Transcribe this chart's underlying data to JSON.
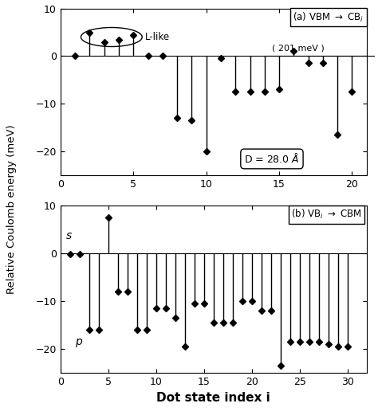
{
  "panel_a": {
    "x": [
      1,
      2,
      3,
      4,
      5,
      6,
      7,
      8,
      9,
      10,
      11,
      12,
      13,
      14,
      15,
      16,
      17,
      18,
      19,
      20
    ],
    "y": [
      0.0,
      5.0,
      3.0,
      3.5,
      4.5,
      0.0,
      0.0,
      -13.0,
      -13.5,
      -20.0,
      -0.5,
      -7.5,
      -7.5,
      -7.5,
      -7.0,
      1.0,
      -1.5,
      -1.5,
      -16.5,
      -7.5
    ],
    "ylim": [
      -25,
      10
    ],
    "yticks": [
      -20,
      -10,
      0,
      10
    ],
    "xlim": [
      0,
      21
    ],
    "xticks": [
      0,
      5,
      10,
      15,
      20
    ]
  },
  "panel_b": {
    "x": [
      1,
      2,
      3,
      4,
      5,
      6,
      7,
      8,
      9,
      10,
      11,
      12,
      13,
      14,
      15,
      16,
      17,
      18,
      19,
      20,
      21,
      22,
      23,
      24,
      25,
      26,
      27,
      28,
      29,
      30
    ],
    "y": [
      -0.2,
      -0.2,
      -16.0,
      -16.0,
      7.5,
      -8.0,
      -8.0,
      -16.0,
      -16.0,
      -11.5,
      -11.5,
      -13.5,
      -19.5,
      -10.5,
      -10.5,
      -14.5,
      -14.5,
      -14.5,
      -10.0,
      -10.0,
      -12.0,
      -12.0,
      -23.5,
      -18.5,
      -18.5,
      -18.5,
      -18.5,
      -19.0,
      -19.5,
      -19.5
    ],
    "ylim": [
      -25,
      10
    ],
    "yticks": [
      -20,
      -10,
      0,
      10
    ],
    "xlim": [
      0,
      32
    ],
    "xticks": [
      0,
      5,
      10,
      15,
      20,
      25,
      30
    ]
  },
  "xlabel": "Dot state index i",
  "ylabel": "Relative Coulomb energy (meV)"
}
